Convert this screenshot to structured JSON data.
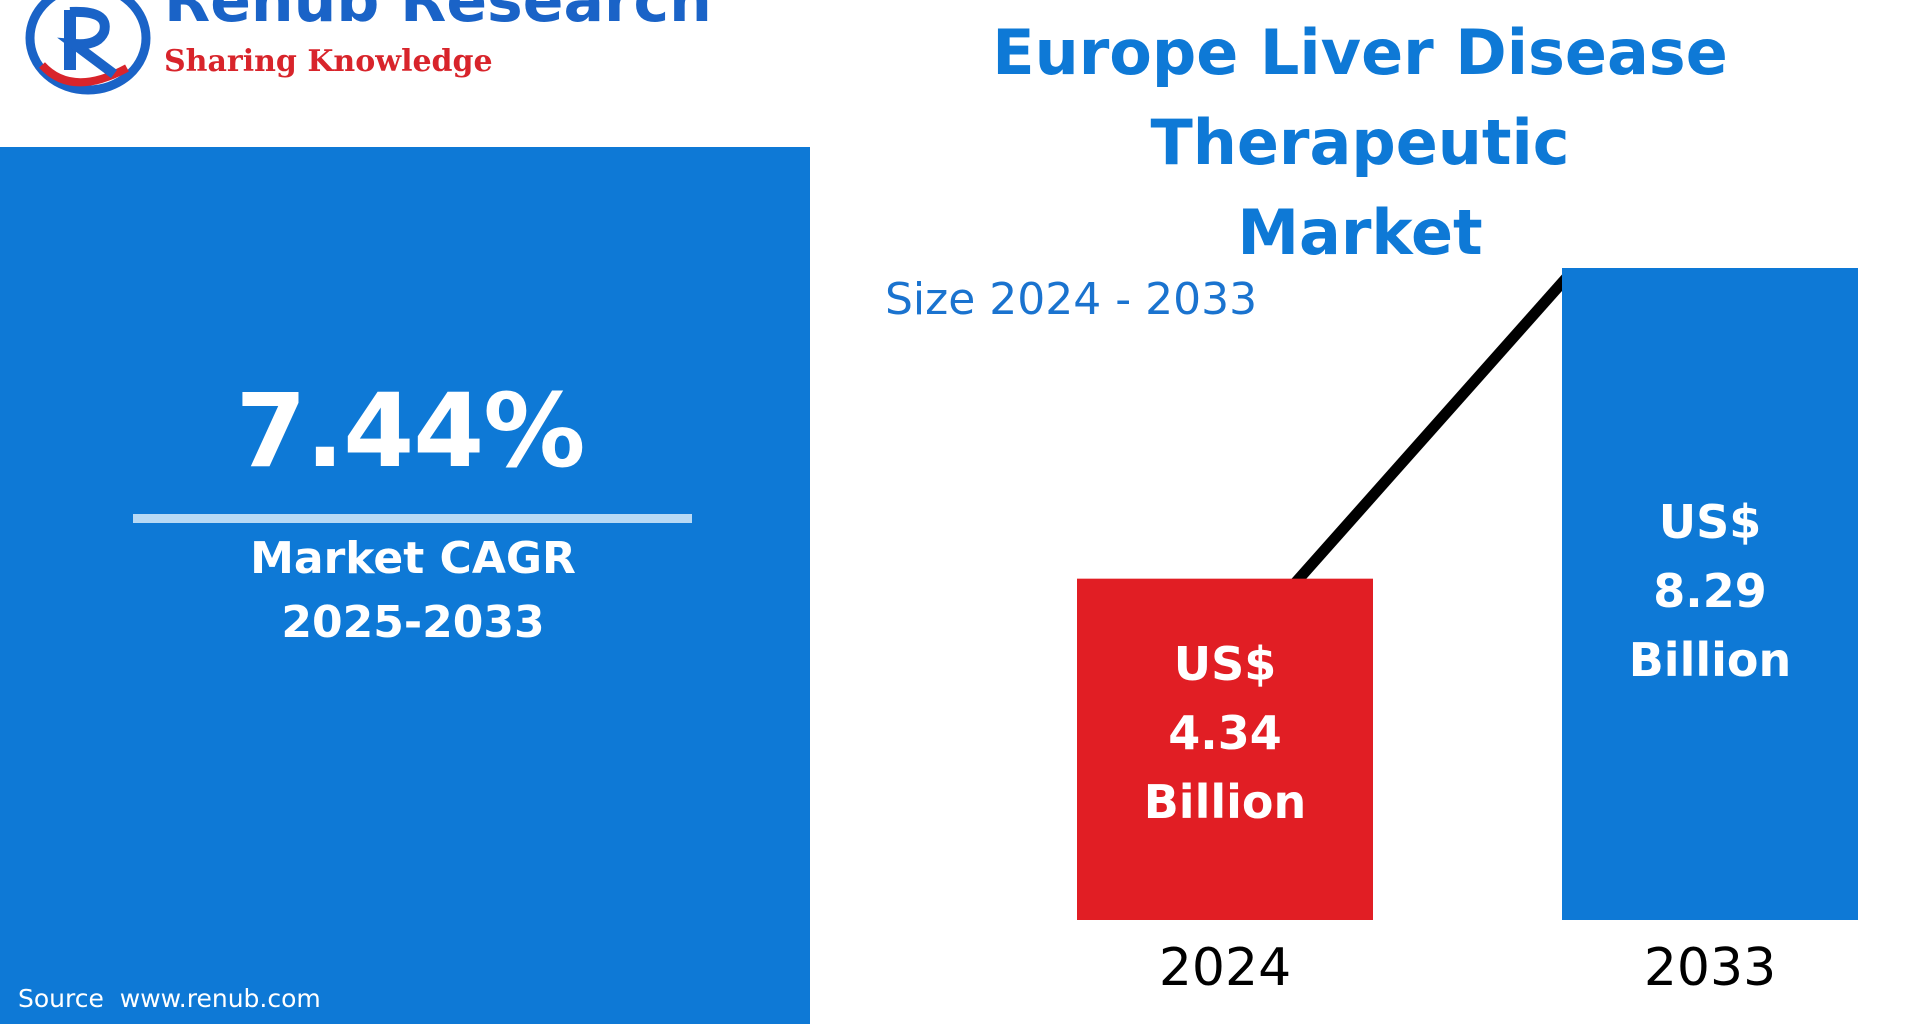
{
  "logo": {
    "icon": "renub-r-logo",
    "name": "Renub Research",
    "tagline": "Sharing Knowledge",
    "colors": {
      "blue": "#1a63c7",
      "red": "#d8242b"
    }
  },
  "cagr": {
    "value": "7.44%",
    "label_line1": "Market CAGR",
    "label_line2": "2025-2033"
  },
  "source": "Source  www.renub.com",
  "title": {
    "line1": "Europe Liver Disease Therapeutic",
    "line2": "Market"
  },
  "subtitle": "Size 2024 - 2033",
  "colors": {
    "panel_blue": "#0e79d6",
    "bar_red": "#e11e24",
    "bar_blue": "#0e79d6",
    "trend_line": "#000000"
  },
  "chart_data": {
    "type": "bar",
    "title": "Europe Liver Disease Therapeutic Market",
    "subtitle": "Size 2024 - 2033",
    "categories": [
      "2024",
      "2033"
    ],
    "values": [
      4.34,
      8.29
    ],
    "unit": "US$ Billion",
    "data_labels": [
      [
        "US$",
        "4.34",
        "Billion"
      ],
      [
        "US$",
        "8.29",
        "Billion"
      ]
    ],
    "bar_colors": [
      "#e11e24",
      "#0e79d6"
    ],
    "trend_line": true,
    "grid": false,
    "ylim": [
      0,
      8.29
    ]
  }
}
